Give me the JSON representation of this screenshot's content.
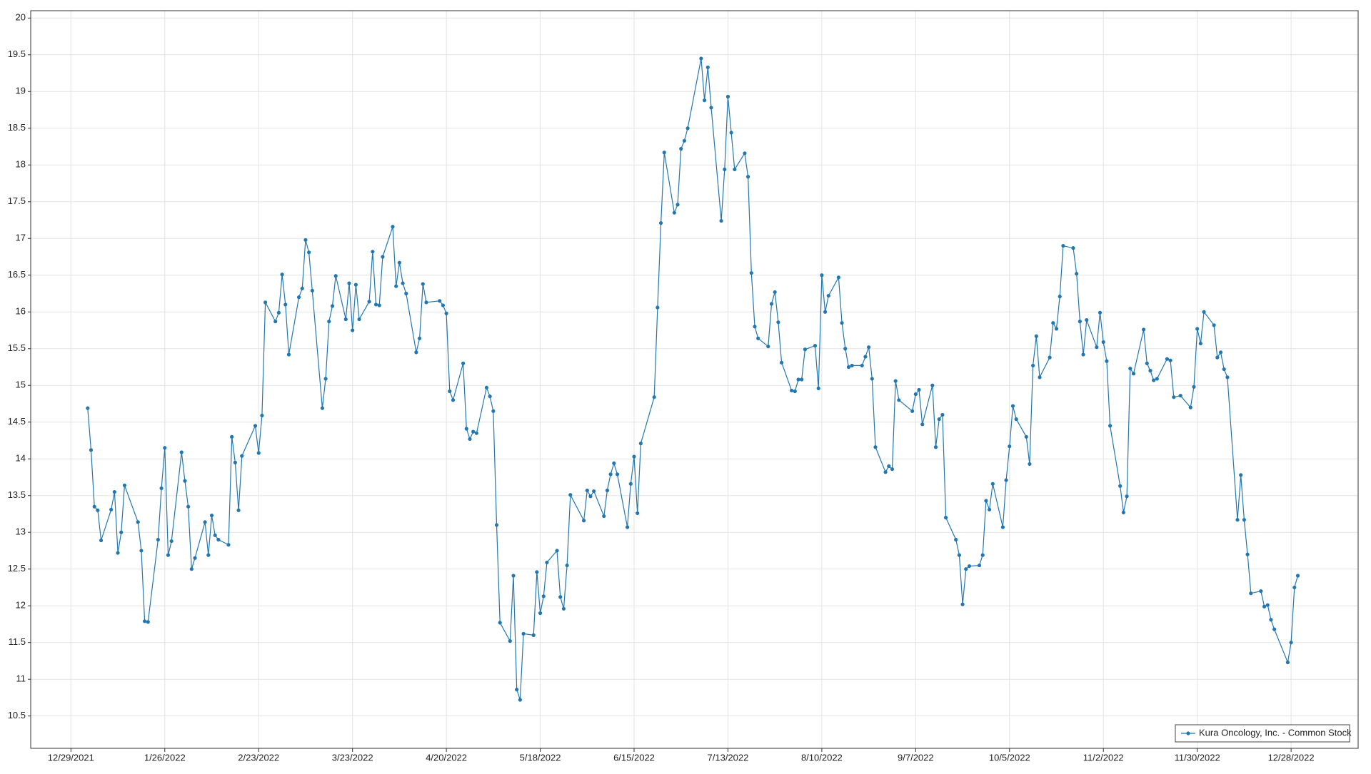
{
  "chart_data": {
    "type": "line",
    "x": [
      "1/3/2022",
      "1/4/2022",
      "1/5/2022",
      "1/6/2022",
      "1/7/2022",
      "1/10/2022",
      "1/11/2022",
      "1/12/2022",
      "1/13/2022",
      "1/14/2022",
      "1/18/2022",
      "1/19/2022",
      "1/20/2022",
      "1/21/2022",
      "1/24/2022",
      "1/25/2022",
      "1/26/2022",
      "1/27/2022",
      "1/28/2022",
      "1/31/2022",
      "2/1/2022",
      "2/2/2022",
      "2/3/2022",
      "2/4/2022",
      "2/7/2022",
      "2/8/2022",
      "2/9/2022",
      "2/10/2022",
      "2/11/2022",
      "2/14/2022",
      "2/15/2022",
      "2/16/2022",
      "2/17/2022",
      "2/18/2022",
      "2/22/2022",
      "2/23/2022",
      "2/24/2022",
      "2/25/2022",
      "2/28/2022",
      "3/1/2022",
      "3/2/2022",
      "3/3/2022",
      "3/4/2022",
      "3/7/2022",
      "3/8/2022",
      "3/9/2022",
      "3/10/2022",
      "3/11/2022",
      "3/14/2022",
      "3/15/2022",
      "3/16/2022",
      "3/17/2022",
      "3/18/2022",
      "3/21/2022",
      "3/22/2022",
      "3/23/2022",
      "3/24/2022",
      "3/25/2022",
      "3/28/2022",
      "3/29/2022",
      "3/30/2022",
      "3/31/2022",
      "4/1/2022",
      "4/4/2022",
      "4/5/2022",
      "4/6/2022",
      "4/7/2022",
      "4/8/2022",
      "4/11/2022",
      "4/12/2022",
      "4/13/2022",
      "4/14/2022",
      "4/18/2022",
      "4/19/2022",
      "4/20/2022",
      "4/21/2022",
      "4/22/2022",
      "4/25/2022",
      "4/26/2022",
      "4/27/2022",
      "4/28/2022",
      "4/29/2022",
      "5/2/2022",
      "5/3/2022",
      "5/4/2022",
      "5/5/2022",
      "5/6/2022",
      "5/9/2022",
      "5/10/2022",
      "5/11/2022",
      "5/12/2022",
      "5/13/2022",
      "5/16/2022",
      "5/17/2022",
      "5/18/2022",
      "5/19/2022",
      "5/20/2022",
      "5/23/2022",
      "5/24/2022",
      "5/25/2022",
      "5/26/2022",
      "5/27/2022",
      "5/31/2022",
      "6/1/2022",
      "6/2/2022",
      "6/3/2022",
      "6/6/2022",
      "6/7/2022",
      "6/8/2022",
      "6/9/2022",
      "6/10/2022",
      "6/13/2022",
      "6/14/2022",
      "6/15/2022",
      "6/16/2022",
      "6/17/2022",
      "6/21/2022",
      "6/22/2022",
      "6/23/2022",
      "6/24/2022",
      "6/27/2022",
      "6/28/2022",
      "6/29/2022",
      "6/30/2022",
      "7/1/2022",
      "7/5/2022",
      "7/6/2022",
      "7/7/2022",
      "7/8/2022",
      "7/11/2022",
      "7/12/2022",
      "7/13/2022",
      "7/14/2022",
      "7/15/2022",
      "7/18/2022",
      "7/19/2022",
      "7/20/2022",
      "7/21/2022",
      "7/22/2022",
      "7/25/2022",
      "7/26/2022",
      "7/27/2022",
      "7/28/2022",
      "7/29/2022",
      "8/1/2022",
      "8/2/2022",
      "8/3/2022",
      "8/4/2022",
      "8/5/2022",
      "8/8/2022",
      "8/9/2022",
      "8/10/2022",
      "8/11/2022",
      "8/12/2022",
      "8/15/2022",
      "8/16/2022",
      "8/17/2022",
      "8/18/2022",
      "8/19/2022",
      "8/22/2022",
      "8/23/2022",
      "8/24/2022",
      "8/25/2022",
      "8/26/2022",
      "8/29/2022",
      "8/30/2022",
      "8/31/2022",
      "9/1/2022",
      "9/2/2022",
      "9/6/2022",
      "9/7/2022",
      "9/8/2022",
      "9/9/2022",
      "9/12/2022",
      "9/13/2022",
      "9/14/2022",
      "9/15/2022",
      "9/16/2022",
      "9/19/2022",
      "9/20/2022",
      "9/21/2022",
      "9/22/2022",
      "9/23/2022",
      "9/26/2022",
      "9/27/2022",
      "9/28/2022",
      "9/29/2022",
      "9/30/2022",
      "10/3/2022",
      "10/4/2022",
      "10/5/2022",
      "10/6/2022",
      "10/7/2022",
      "10/10/2022",
      "10/11/2022",
      "10/12/2022",
      "10/13/2022",
      "10/14/2022",
      "10/17/2022",
      "10/18/2022",
      "10/19/2022",
      "10/20/2022",
      "10/21/2022",
      "10/24/2022",
      "10/25/2022",
      "10/26/2022",
      "10/27/2022",
      "10/28/2022",
      "10/31/2022",
      "11/1/2022",
      "11/2/2022",
      "11/3/2022",
      "11/4/2022",
      "11/7/2022",
      "11/8/2022",
      "11/9/2022",
      "11/10/2022",
      "11/11/2022",
      "11/14/2022",
      "11/15/2022",
      "11/16/2022",
      "11/17/2022",
      "11/18/2022",
      "11/21/2022",
      "11/22/2022",
      "11/23/2022",
      "11/25/2022",
      "11/28/2022",
      "11/29/2022",
      "11/30/2022",
      "12/1/2022",
      "12/2/2022",
      "12/5/2022",
      "12/6/2022",
      "12/7/2022",
      "12/8/2022",
      "12/9/2022",
      "12/12/2022",
      "12/13/2022",
      "12/14/2022",
      "12/15/2022",
      "12/16/2022",
      "12/19/2022",
      "12/20/2022",
      "12/21/2022",
      "12/22/2022",
      "12/23/2022",
      "12/27/2022",
      "12/28/2022",
      "12/29/2022",
      "12/30/2022"
    ],
    "series": [
      {
        "name": "Kura Oncology, Inc. - Common Stock",
        "color": "#2277b0",
        "values": [
          14.69,
          14.12,
          13.35,
          13.3,
          12.89,
          13.31,
          13.55,
          12.72,
          13.0,
          13.64,
          13.14,
          12.75,
          11.79,
          11.78,
          12.9,
          13.6,
          14.15,
          12.69,
          12.88,
          14.09,
          13.7,
          13.35,
          12.5,
          12.65,
          13.14,
          12.69,
          13.23,
          12.96,
          12.9,
          12.83,
          14.3,
          13.95,
          13.3,
          14.04,
          14.45,
          14.08,
          14.59,
          16.13,
          15.87,
          15.99,
          16.51,
          16.1,
          15.42,
          16.2,
          16.32,
          16.98,
          16.81,
          16.29,
          14.69,
          15.09,
          15.87,
          16.08,
          16.49,
          15.9,
          16.39,
          15.75,
          16.37,
          15.9,
          16.14,
          16.82,
          16.1,
          16.09,
          16.75,
          17.16,
          16.35,
          16.67,
          16.39,
          16.25,
          15.45,
          15.64,
          16.38,
          16.13,
          16.15,
          16.09,
          15.98,
          14.92,
          14.8,
          15.3,
          14.41,
          14.27,
          14.37,
          14.35,
          14.97,
          14.85,
          14.65,
          13.1,
          11.77,
          11.52,
          12.41,
          10.86,
          10.72,
          11.62,
          11.6,
          12.46,
          11.9,
          12.13,
          12.59,
          12.75,
          12.12,
          11.96,
          12.55,
          13.51,
          13.16,
          13.57,
          13.49,
          13.56,
          13.22,
          13.57,
          13.79,
          13.94,
          13.79,
          13.07,
          13.66,
          14.03,
          13.26,
          14.21,
          14.84,
          16.06,
          17.21,
          18.17,
          17.35,
          17.46,
          18.22,
          18.33,
          18.5,
          19.45,
          18.88,
          19.33,
          18.78,
          17.24,
          17.94,
          18.93,
          18.44,
          17.94,
          18.16,
          17.84,
          16.53,
          15.8,
          15.64,
          15.53,
          16.11,
          16.27,
          15.86,
          15.31,
          14.93,
          14.92,
          15.08,
          15.08,
          15.49,
          15.54,
          14.96,
          16.5,
          16.0,
          16.22,
          16.47,
          15.85,
          15.5,
          15.25,
          15.27,
          15.27,
          15.39,
          15.52,
          15.09,
          14.16,
          13.82,
          13.9,
          13.86,
          15.06,
          14.8,
          14.65,
          14.88,
          14.94,
          14.47,
          15.0,
          14.16,
          14.54,
          14.6,
          13.2,
          12.9,
          12.69,
          12.02,
          12.5,
          12.54,
          12.55,
          12.69,
          13.43,
          13.31,
          13.66,
          13.07,
          13.71,
          14.17,
          14.72,
          14.54,
          14.3,
          13.93,
          15.27,
          15.67,
          15.11,
          15.38,
          15.85,
          15.77,
          16.21,
          16.9,
          16.87,
          16.52,
          15.87,
          15.42,
          15.89,
          15.52,
          15.99,
          15.59,
          15.33,
          14.45,
          13.63,
          13.27,
          13.49,
          15.23,
          15.16,
          15.76,
          15.3,
          15.2,
          15.07,
          15.09,
          15.36,
          15.34,
          14.84,
          14.86,
          14.7,
          14.98,
          15.77,
          15.57,
          16.0,
          15.82,
          15.38,
          15.45,
          15.22,
          15.11,
          13.17,
          13.78,
          13.17,
          12.7,
          12.17,
          12.2,
          11.99,
          12.01,
          11.81,
          11.68,
          11.23,
          11.5,
          12.25,
          12.41
        ]
      }
    ],
    "xlim": [
      "12/17/2021",
      "1/17/2023"
    ],
    "xticks": [
      "12/29/2021",
      "1/26/2022",
      "2/23/2022",
      "3/23/2022",
      "4/20/2022",
      "5/18/2022",
      "6/15/2022",
      "7/13/2022",
      "8/10/2022",
      "9/7/2022",
      "10/5/2022",
      "11/2/2022",
      "11/30/2022",
      "12/28/2022"
    ],
    "ylim": [
      10.06,
      20.1
    ],
    "yticks": [
      10.5,
      11,
      11.5,
      12,
      12.5,
      13,
      13.5,
      14,
      14.5,
      15,
      15.5,
      16,
      16.5,
      17,
      17.5,
      18,
      18.5,
      19,
      19.5,
      20
    ],
    "grid": true,
    "legend": "lower right"
  }
}
